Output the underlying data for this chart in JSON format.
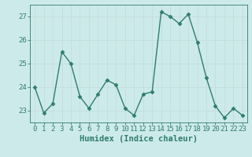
{
  "x": [
    0,
    1,
    2,
    3,
    4,
    5,
    6,
    7,
    8,
    9,
    10,
    11,
    12,
    13,
    14,
    15,
    16,
    17,
    18,
    19,
    20,
    21,
    22,
    23
  ],
  "y": [
    24.0,
    22.9,
    23.3,
    25.5,
    25.0,
    23.6,
    23.1,
    23.7,
    24.3,
    24.1,
    23.1,
    22.8,
    23.7,
    23.8,
    27.2,
    27.0,
    26.7,
    27.1,
    25.9,
    24.4,
    23.2,
    22.7,
    23.1,
    22.8
  ],
  "line_color": "#2e7d6e",
  "marker": "D",
  "marker_size": 2.5,
  "line_width": 1.0,
  "xlabel": "Humidex (Indice chaleur)",
  "xlim": [
    -0.5,
    23.5
  ],
  "ylim": [
    22.5,
    27.5
  ],
  "yticks": [
    23,
    24,
    25,
    26,
    27
  ],
  "xticks": [
    0,
    1,
    2,
    3,
    4,
    5,
    6,
    7,
    8,
    9,
    10,
    11,
    12,
    13,
    14,
    15,
    16,
    17,
    18,
    19,
    20,
    21,
    22,
    23
  ],
  "bg_color": "#cdeaea",
  "grid_color": "#b8d8d8",
  "line_grid_color": "#c4dcdc",
  "tick_color": "#2e7d6e",
  "label_color": "#2e7d6e",
  "xlabel_fontsize": 7.5,
  "tick_fontsize": 6.5
}
